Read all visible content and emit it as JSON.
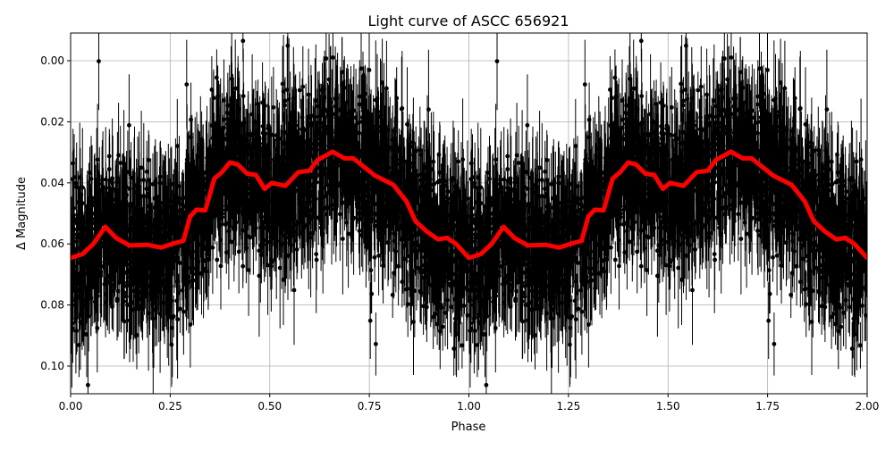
{
  "chart_data": {
    "type": "scatter",
    "title": "Light curve of ASCC 656921",
    "xlabel": "Phase",
    "ylabel": "Δ Magnitude",
    "xlim": [
      0.0,
      2.0
    ],
    "ylim": [
      0.109,
      -0.009
    ],
    "y_inverted": true,
    "grid": true,
    "legend": null,
    "x_ticks": [
      "0.00",
      "0.25",
      "0.50",
      "0.75",
      "1.00",
      "1.25",
      "1.50",
      "1.75",
      "2.00"
    ],
    "y_ticks": [
      "0.00",
      "0.02",
      "0.04",
      "0.06",
      "0.08",
      "0.10"
    ],
    "series": [
      {
        "name": "observations",
        "style": "black points with vertical error bars",
        "color": "#000000",
        "description": "Dense phase-folded photometry; bulk scatter spans roughly 0.02-0.09 mag, outliers to the axis limits, error bars ~0.01-0.03 mag"
      },
      {
        "name": "binned trend",
        "style": "thick line",
        "color": "#ff0000",
        "x": [
          0.0,
          0.03,
          0.057,
          0.087,
          0.114,
          0.148,
          0.193,
          0.227,
          0.26,
          0.283,
          0.3,
          0.316,
          0.338,
          0.361,
          0.38,
          0.4,
          0.42,
          0.443,
          0.465,
          0.487,
          0.505,
          0.539,
          0.572,
          0.6,
          0.62,
          0.658,
          0.688,
          0.71,
          0.765,
          0.81,
          0.843,
          0.866,
          0.895,
          0.922,
          0.945,
          0.968,
          1.0
        ],
        "y": [
          0.0646,
          0.0633,
          0.06,
          0.0544,
          0.058,
          0.0605,
          0.0603,
          0.0612,
          0.0598,
          0.059,
          0.051,
          0.0488,
          0.049,
          0.0386,
          0.0365,
          0.0333,
          0.034,
          0.037,
          0.0374,
          0.042,
          0.04,
          0.041,
          0.0365,
          0.036,
          0.0325,
          0.0298,
          0.032,
          0.032,
          0.0377,
          0.0406,
          0.046,
          0.0526,
          0.056,
          0.0585,
          0.058,
          0.06,
          0.0646
        ],
        "note": "Pattern repeats identically for phase 1.0-2.0"
      }
    ]
  }
}
